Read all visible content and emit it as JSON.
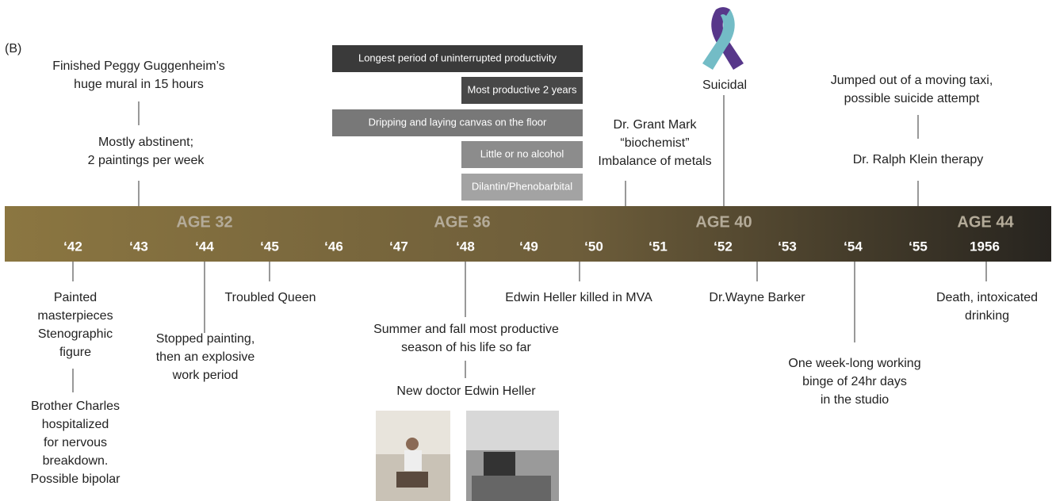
{
  "panel_label": "(B)",
  "ages": [
    "AGE 32",
    "AGE 36",
    "AGE 40",
    "AGE 44"
  ],
  "years": [
    "‘42",
    "‘43",
    "‘44",
    "‘45",
    "‘46",
    "‘47",
    "‘48",
    "‘49",
    "‘50",
    "‘51",
    "‘52",
    "‘53",
    "‘54",
    "‘55",
    "1956"
  ],
  "bars": [
    "Longest period of uninterrupted productivity",
    "Most productive 2 years",
    "Dripping and laying canvas on the floor",
    "Little or no alcohol",
    "Dilantin/Phenobarbital"
  ],
  "events_above": [
    {
      "lines": [
        "Finished Peggy Guggenheim’s",
        "huge mural in 15 hours"
      ]
    },
    {
      "lines": [
        "Mostly abstinent;",
        "2 paintings per week"
      ]
    },
    {
      "lines": [
        "Dr. Grant Mark",
        "“biochemist”",
        "Imbalance of metals"
      ]
    },
    {
      "lines": [
        "Suicidal"
      ]
    },
    {
      "lines": [
        "Jumped out of a moving taxi,",
        "possible suicide attempt"
      ]
    },
    {
      "lines": [
        "Dr. Ralph Klein therapy"
      ]
    }
  ],
  "events_below": [
    {
      "lines": [
        "Painted",
        "masterpieces",
        "Stenographic",
        "figure"
      ]
    },
    {
      "lines": [
        "Brother Charles",
        "hospitalized",
        "for nervous",
        "breakdown.",
        "Possible bipolar"
      ]
    },
    {
      "lines": [
        "Stopped painting,",
        "then an explosive",
        "work period"
      ]
    },
    {
      "lines": [
        "Troubled Queen"
      ]
    },
    {
      "lines": [
        "Summer and fall most productive",
        "season of his life so far"
      ]
    },
    {
      "lines": [
        "New doctor Edwin Heller"
      ]
    },
    {
      "lines": [
        "Edwin Heller killed in MVA"
      ]
    },
    {
      "lines": [
        "Dr.Wayne Barker"
      ]
    },
    {
      "lines": [
        "One week-long working",
        "binge of 24hr days",
        "in the studio"
      ]
    },
    {
      "lines": [
        "Death, intoxicated",
        "drinking"
      ]
    }
  ]
}
